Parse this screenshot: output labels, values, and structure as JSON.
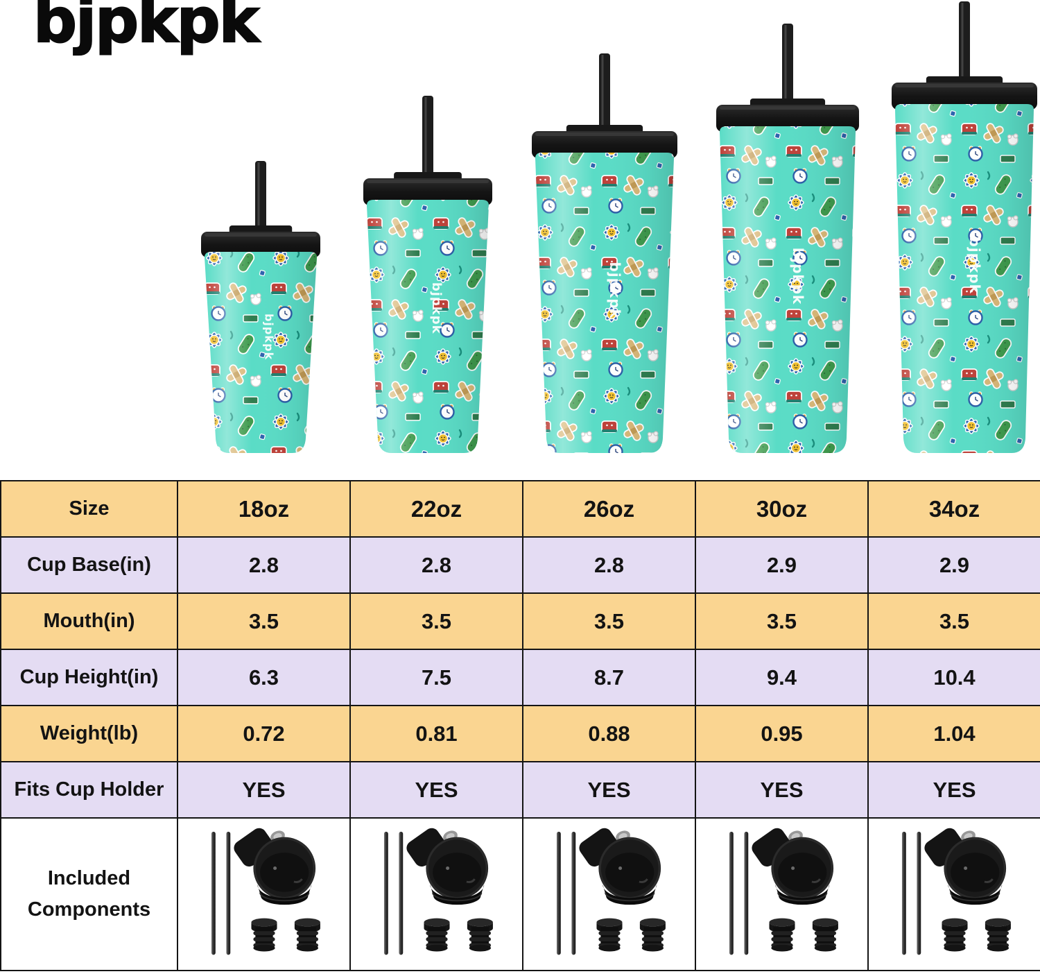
{
  "brand": {
    "logo": "bjpkpk"
  },
  "hero": {
    "tumblers": [
      {
        "label": "18oz"
      },
      {
        "label": "22oz"
      },
      {
        "label": "26oz"
      },
      {
        "label": "30oz"
      },
      {
        "label": "34oz"
      }
    ]
  },
  "table": {
    "rows": [
      {
        "label": "Size",
        "values": [
          "18oz",
          "22oz",
          "26oz",
          "30oz",
          "34oz"
        ]
      },
      {
        "label": "Cup Base(in)",
        "values": [
          "2.8",
          "2.8",
          "2.8",
          "2.9",
          "2.9"
        ]
      },
      {
        "label": "Mouth(in)",
        "values": [
          "3.5",
          "3.5",
          "3.5",
          "3.5",
          "3.5"
        ]
      },
      {
        "label": "Cup Height(in)",
        "values": [
          "6.3",
          "7.5",
          "8.7",
          "9.4",
          "10.4"
        ]
      },
      {
        "label": "Weight(lb)",
        "values": [
          "0.72",
          "0.81",
          "0.88",
          "0.95",
          "1.04"
        ]
      },
      {
        "label": "Fits Cup Holder",
        "values": [
          "YES",
          "YES",
          "YES",
          "YES",
          "YES"
        ]
      }
    ],
    "components": {
      "label_line1": "Included",
      "label_line2": "Components",
      "items": [
        "two metal straws",
        "flip-top lid",
        "two rubber stoppers"
      ]
    }
  },
  "colors": {
    "row_yellow": "#FAD591",
    "row_purple": "#E4DCF3",
    "border": "#141414",
    "tumbler_teal": "#5ADCC6",
    "lid_black": "#1A1A1A"
  }
}
